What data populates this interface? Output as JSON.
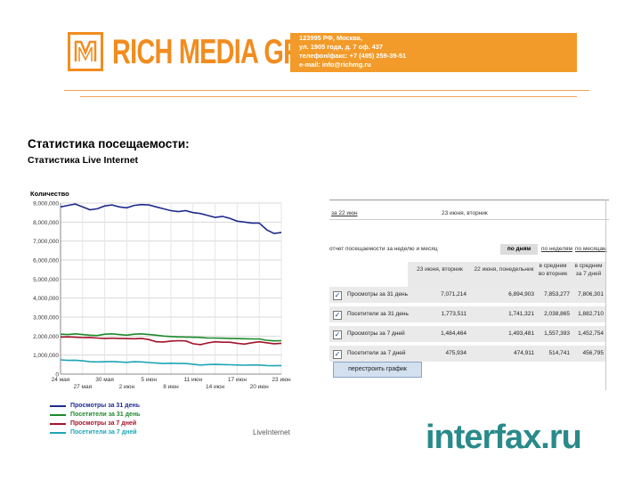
{
  "header": {
    "logo_text": "RICH MEDIA GROUP",
    "logo_mark": "RMG",
    "contact": [
      "123995 РФ, Москва,",
      "ул. 1905 года, д. 7 оф. 437",
      "телефон/факс: +7 (495) 259-39-51",
      "e-mail: info@richmg.ru"
    ],
    "brand_color": "#f28c1e"
  },
  "page": {
    "title": "Статистика посещаемости:",
    "subtitle": "Статистика Live Internet"
  },
  "chart_data": {
    "type": "line",
    "ylabel": "Количество",
    "ylim": [
      0,
      9000000
    ],
    "y_ticks": [
      "9,000,000",
      "8,000,000",
      "7,000,000",
      "6,000,000",
      "5,000,000",
      "4,000,000",
      "3,000,000",
      "2,000,000",
      "1,000,000",
      "0"
    ],
    "y_tick_values": [
      9000000,
      8000000,
      7000000,
      6000000,
      5000000,
      4000000,
      3000000,
      2000000,
      1000000,
      0
    ],
    "x_ticks_top": [
      "24 мая",
      "30 мая",
      "5 июн",
      "11 июн",
      "17 июн",
      "23 июн"
    ],
    "x_ticks_bottom": [
      "27 мая",
      "2 июн",
      "8 июн",
      "14 июн",
      "20 июн"
    ],
    "n_points": 31,
    "series": [
      {
        "name": "Просмотры за 31 день",
        "color": "#1f2b8c",
        "values": [
          8800000,
          8880000,
          8950000,
          8800000,
          8650000,
          8700000,
          8850000,
          8900000,
          8800000,
          8750000,
          8880000,
          8920000,
          8900000,
          8800000,
          8700000,
          8600000,
          8550000,
          8600000,
          8500000,
          8450000,
          8350000,
          8250000,
          8300000,
          8200000,
          8050000,
          8000000,
          7950000,
          7950000,
          7600000,
          7400000,
          7450000
        ]
      },
      {
        "name": "Посетители за 31 день",
        "color": "#1d8a2a",
        "values": [
          2100000,
          2080000,
          2120000,
          2080000,
          2050000,
          2030000,
          2100000,
          2120000,
          2080000,
          2050000,
          2100000,
          2120000,
          2080000,
          2050000,
          2000000,
          1980000,
          1960000,
          1950000,
          1940000,
          1930000,
          1900000,
          1900000,
          1890000,
          1880000,
          1870000,
          1860000,
          1850000,
          1850000,
          1780000,
          1750000,
          1760000
        ]
      },
      {
        "name": "Просмотры за 7 дней",
        "color": "#a3122a",
        "values": [
          1950000,
          1960000,
          1940000,
          1920000,
          1930000,
          1900000,
          1880000,
          1890000,
          1880000,
          1870000,
          1860000,
          1880000,
          1820000,
          1700000,
          1690000,
          1740000,
          1760000,
          1750000,
          1600000,
          1550000,
          1640000,
          1700000,
          1680000,
          1680000,
          1620000,
          1580000,
          1650000,
          1700000,
          1650000,
          1600000,
          1620000
        ]
      },
      {
        "name": "Посетители за 7 дней",
        "color": "#1ea5b5",
        "values": [
          750000,
          720000,
          730000,
          700000,
          650000,
          640000,
          650000,
          660000,
          640000,
          620000,
          650000,
          640000,
          610000,
          580000,
          560000,
          570000,
          560000,
          560000,
          520000,
          480000,
          500000,
          510000,
          500000,
          490000,
          480000,
          470000,
          480000,
          480000,
          450000,
          440000,
          450000
        ]
      }
    ],
    "legend": [
      "Просмотры за 31 день",
      "Посетители за 31 день",
      "Просмотры за 7 дней",
      "Посетители за 7 дней"
    ],
    "credit": "LiveInternet"
  },
  "table": {
    "header_left": "за 22 июн",
    "header_right": "23 июня, вторник",
    "section_title": "отчет посещаемости за неделю и месяц",
    "tabs": [
      "по дням",
      "по неделям",
      "по месяцам"
    ],
    "columns": [
      "23 июня, вторник",
      "22 июня, понедельник",
      "в среднем во вторник",
      "в среднем за 7 дней"
    ],
    "rows": [
      {
        "label": "Просмотры за 31 день",
        "values": [
          "7,071,214",
          "6,894,903",
          "7,853,277",
          "7,806,301"
        ]
      },
      {
        "label": "Посетители за 31 день",
        "values": [
          "1,773,511",
          "1,741,321",
          "2,038,865",
          "1,882,710"
        ]
      },
      {
        "label": "Просмотры за 7 дней",
        "values": [
          "1,484,464",
          "1,493,481",
          "1,557,393",
          "1,452,754"
        ]
      },
      {
        "label": "Посетители за 7 дней",
        "values": [
          "475,934",
          "474,911",
          "514,741",
          "456,795"
        ]
      }
    ],
    "button_label": "перестроить график"
  },
  "footer": {
    "interfax_logo": "interfax.ru",
    "interfax_color": "#2a8a8a"
  }
}
